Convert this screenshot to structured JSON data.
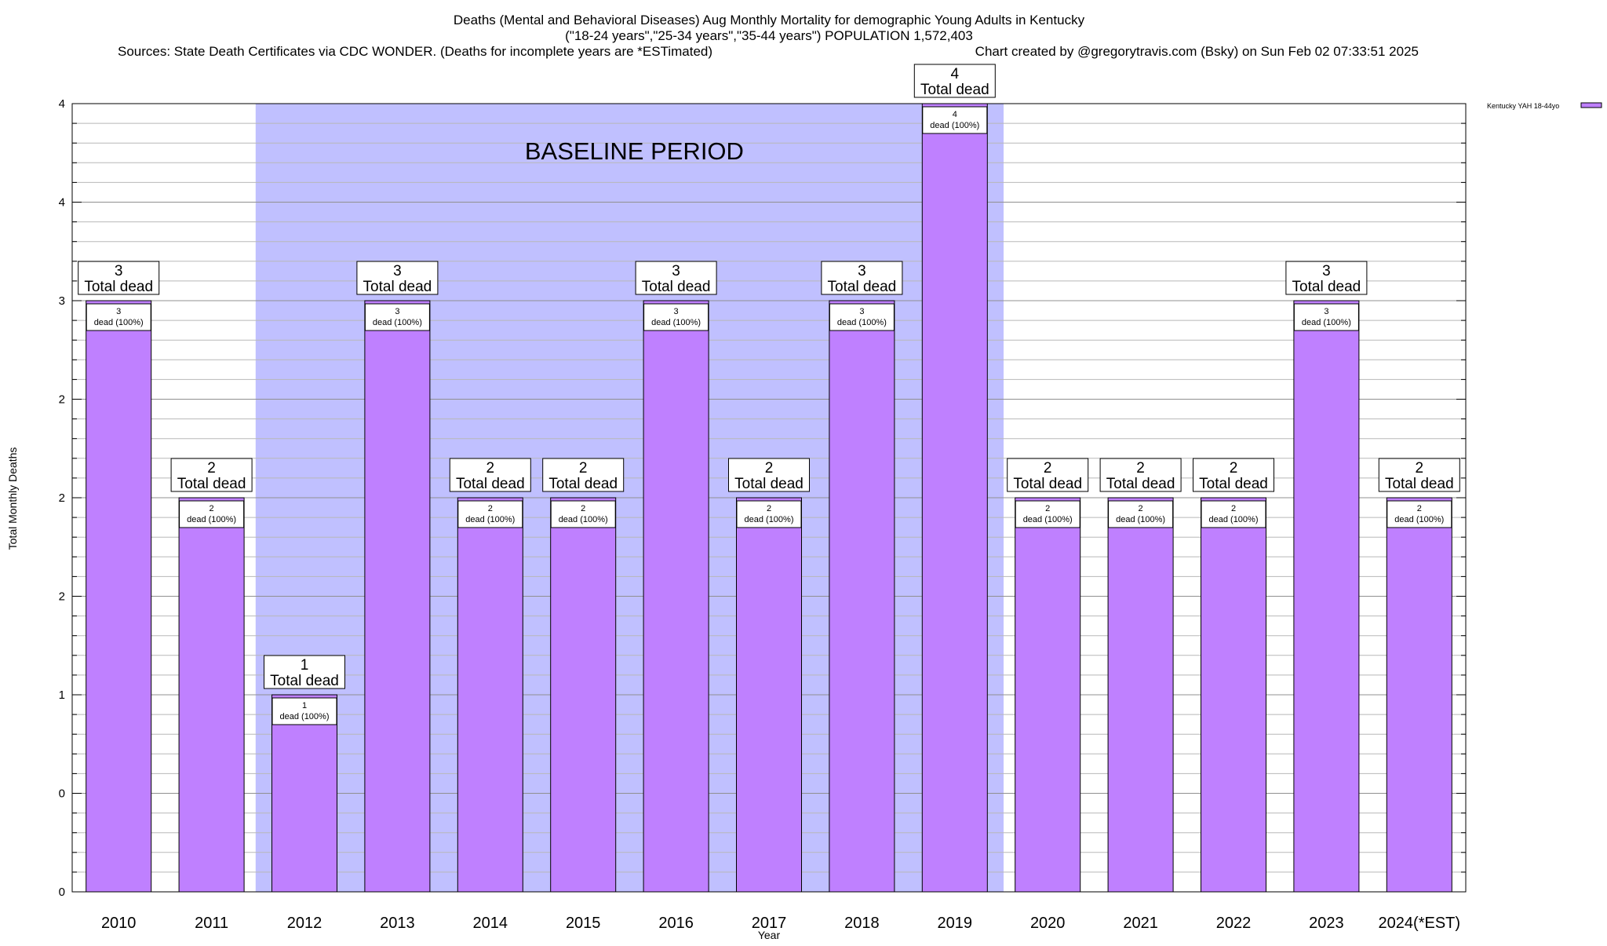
{
  "chart_data": {
    "type": "bar",
    "title_lines": [
      "Deaths (Mental and Behavioral Diseases) Aug Monthly Mortality for demographic Young Adults in Kentucky",
      "(\"18-24 years\",\"25-34 years\",\"35-44 years\") POPULATION 1,572,403"
    ],
    "sources_text": "Sources: State Death Certificates via CDC WONDER. (Deaths for incomplete years are *ESTimated)",
    "credit_text": "Chart created by @gregorytravis.com (Bsky) on Sun Feb 02 07:33:51 2025",
    "xlabel": "Year",
    "ylabel": "Total Monthly Deaths",
    "ylim": [
      0,
      4
    ],
    "ytick_values": [
      0,
      0.5,
      1,
      1.5,
      2,
      2.5,
      3,
      3.5,
      4
    ],
    "ytick_labels": [
      "0",
      "0",
      "1",
      "2",
      "2",
      "2",
      "3",
      "4",
      "4"
    ],
    "minor_tick_step": 0.1,
    "categories": [
      "2010",
      "2011",
      "2012",
      "2013",
      "2014",
      "2015",
      "2016",
      "2017",
      "2018",
      "2019",
      "2020",
      "2021",
      "2022",
      "2023",
      "2024(*EST)"
    ],
    "series": [
      {
        "name": "Kentucky YAH 18-44yo",
        "color": "#bf80ff",
        "values": [
          3,
          2,
          1,
          3,
          2,
          2,
          3,
          2,
          3,
          4,
          2,
          2,
          2,
          3,
          2
        ]
      }
    ],
    "bar_labels": {
      "total_suffix": "Total dead",
      "inner_suffix": "dead (100%)"
    },
    "baseline": {
      "label": "BASELINE PERIOD",
      "start_category": "2012",
      "end_category": "2019",
      "color": "#c0c0ff"
    },
    "legend": {
      "position": "top-right",
      "entries": [
        "Kentucky YAH 18-44yo"
      ]
    },
    "grid": true
  }
}
